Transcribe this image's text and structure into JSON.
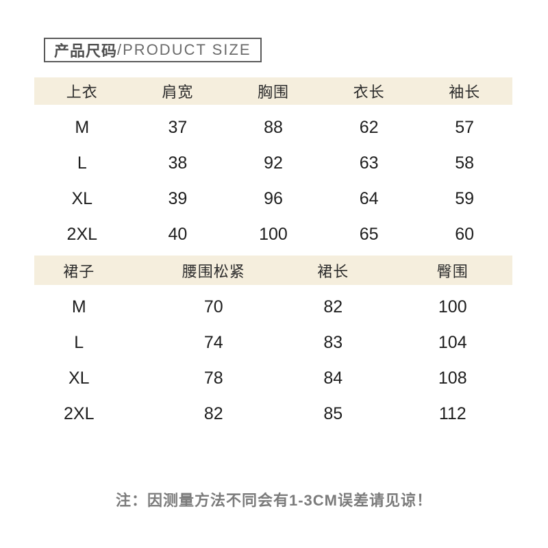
{
  "page": {
    "title_cn": "产品尺码",
    "title_en": "/PRODUCT SIZE",
    "note": "注：因测量方法不同会有1-3CM误差请见谅！"
  },
  "colors": {
    "background": "#ffffff",
    "header_band": "#f5eedd",
    "table_text": "#1d1d1d",
    "title_border": "#595959",
    "note_gray": "#7b7b7b"
  },
  "tops_table": {
    "headers": [
      "上衣",
      "肩宽",
      "胸围",
      "衣长",
      "袖长"
    ],
    "rows": [
      [
        "M",
        "37",
        "88",
        "62",
        "57"
      ],
      [
        "L",
        "38",
        "92",
        "63",
        "58"
      ],
      [
        "XL",
        "39",
        "96",
        "64",
        "59"
      ],
      [
        "2XL",
        "40",
        "100",
        "65",
        "60"
      ]
    ]
  },
  "skirt_table": {
    "headers": [
      "裙子",
      "腰围松紧",
      "裙长",
      "臀围"
    ],
    "rows": [
      [
        "M",
        "70",
        "82",
        "100"
      ],
      [
        "L",
        "74",
        "83",
        "104"
      ],
      [
        "XL",
        "78",
        "84",
        "108"
      ],
      [
        "2XL",
        "82",
        "85",
        "112"
      ]
    ]
  },
  "chart_data": [
    {
      "type": "table",
      "title": "上衣",
      "columns": [
        "上衣",
        "肩宽",
        "胸围",
        "衣长",
        "袖长"
      ],
      "rows": [
        [
          "M",
          37,
          88,
          62,
          57
        ],
        [
          "L",
          38,
          92,
          63,
          58
        ],
        [
          "XL",
          39,
          96,
          64,
          59
        ],
        [
          "2XL",
          40,
          100,
          65,
          60
        ]
      ]
    },
    {
      "type": "table",
      "title": "裙子",
      "columns": [
        "裙子",
        "腰围松紧",
        "裙长",
        "臀围"
      ],
      "rows": [
        [
          "M",
          70,
          82,
          100
        ],
        [
          "L",
          74,
          83,
          104
        ],
        [
          "XL",
          78,
          84,
          108
        ],
        [
          "2XL",
          82,
          85,
          112
        ]
      ]
    }
  ]
}
